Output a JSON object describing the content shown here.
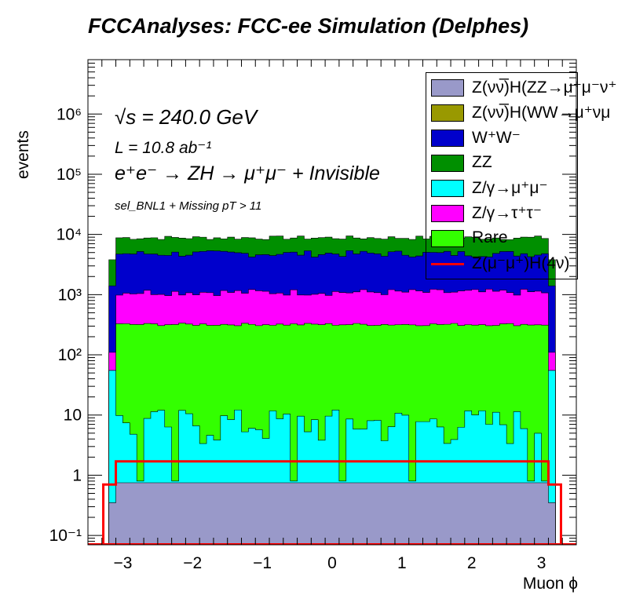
{
  "title": "FCCAnalyses: FCC-ee Simulation (Delphes)",
  "annotations": {
    "sqrt_s": "√s = 240.0 GeV",
    "lumi": "L = 10.8 ab⁻¹",
    "process": "e⁺e⁻ → ZH → μ⁺μ⁻ + Invisible",
    "selection": "sel_BNL1 + Missing pT > 11"
  },
  "legend": [
    {
      "label": "Z(νν̅)H(ZZ→μ⁺μ⁻ν⁺",
      "color": "#9999c9",
      "kind": "fill"
    },
    {
      "label": "Z(νν̅)H(WW→μ⁺νμ",
      "color": "#999900",
      "kind": "fill"
    },
    {
      "label": "W⁺W⁻",
      "color": "#0000cc",
      "kind": "fill"
    },
    {
      "label": "ZZ",
      "color": "#008f00",
      "kind": "fill"
    },
    {
      "label": "Z/γ→μ⁺μ⁻",
      "color": "#00ffff",
      "kind": "fill"
    },
    {
      "label": "Z/γ→τ⁺τ⁻",
      "color": "#ff00ff",
      "kind": "fill"
    },
    {
      "label": "Rare",
      "color": "#33ff00",
      "kind": "fill"
    },
    {
      "label": "Z(μ⁻μ⁺)H(4ν)",
      "color": "#ff0000",
      "kind": "line"
    }
  ],
  "chart_data": {
    "type": "area",
    "title": "FCCAnalyses: FCC-ee Simulation (Delphes)",
    "xlabel": "Muon ϕ",
    "ylabel": "events",
    "xlim": [
      -3.5,
      3.5
    ],
    "ylim": [
      0.07,
      8000000
    ],
    "log_y": true,
    "x_ticks": [
      -3,
      -2,
      -1,
      0,
      1,
      2,
      3
    ],
    "x_tick_labels": [
      "−3",
      "−2",
      "−1",
      "0",
      "1",
      "2",
      "3"
    ],
    "y_ticks": [
      0.1,
      1,
      10,
      100,
      1000,
      10000,
      100000,
      1000000
    ],
    "y_tick_labels": [
      "10⁻¹",
      "1",
      "10",
      "10²",
      "10³",
      "10⁴",
      "10⁵",
      "10⁶"
    ],
    "bin_edges": [
      -3.2,
      -3.1,
      3.1,
      3.2
    ],
    "stack_tops": {
      "ZZ_H_signal": {
        "edge": 0.35,
        "center": 0.75
      },
      "Z_mumu": {
        "center_typical": 6,
        "center_max": 15
      },
      "Rare": {
        "edge": 55,
        "center": 320
      },
      "Z_tautau": {
        "edge": 110,
        "center": 1100
      },
      "WW": {
        "edge": 1400,
        "center": 4800
      },
      "ZZ": {
        "edge": 3800,
        "center": 8800
      }
    },
    "series": [
      {
        "name": "Z(νν̅)H(ZZ→μ⁺μ⁻ν⁺",
        "value_edge": 0.35,
        "value_center": 0.75
      },
      {
        "name": "Z/γ→μ⁺μ⁻",
        "value_center_typical": 6
      },
      {
        "name": "Rare",
        "value_edge": 55,
        "value_center": 320
      },
      {
        "name": "Z/γ→τ⁺τ⁻",
        "value_edge": 110,
        "value_center": 1100
      },
      {
        "name": "W⁺W⁻",
        "value_edge": 1400,
        "value_center": 4800
      },
      {
        "name": "ZZ",
        "value_edge": 3800,
        "value_center": 8800
      },
      {
        "name": "Z(μ⁻μ⁺)H(4ν)",
        "value_edge": 0.7,
        "value_center": 1.7
      }
    ]
  }
}
